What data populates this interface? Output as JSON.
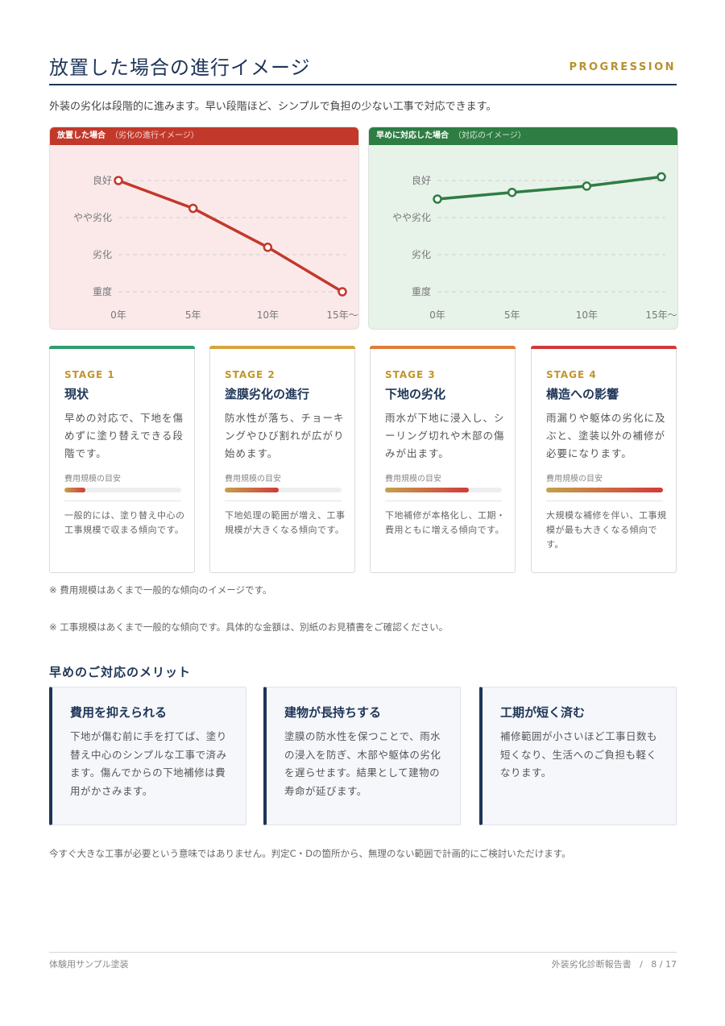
{
  "header": {
    "title": "放置した場合の進行イメージ",
    "english": "PROGRESSION",
    "intro": "外装の劣化は段階的に進みます。早い段階ほど、シンプルで負担の少ない工事で対応できます。"
  },
  "colors": {
    "navy": "#1f3557",
    "gold": "#b8902f",
    "red": "#c2392b",
    "green": "#2e7d43"
  },
  "chart_data": [
    {
      "type": "line",
      "title": "放置した場合",
      "subtitle": "（劣化の進行イメージ）",
      "categories": [
        "0年",
        "5年",
        "10年",
        "15年〜"
      ],
      "y_levels": [
        "重度",
        "劣化",
        "やや劣化",
        "良好"
      ],
      "series": [
        {
          "values": [
            3,
            2.25,
            1.2,
            0
          ]
        }
      ],
      "ylim": [
        0,
        3
      ],
      "grid": true,
      "color": "#c2392b"
    },
    {
      "type": "line",
      "title": "早めに対応した場合",
      "subtitle": "（対応のイメージ）",
      "categories": [
        "0年",
        "5年",
        "10年",
        "15年〜"
      ],
      "y_levels": [
        "重度",
        "劣化",
        "やや劣化",
        "良好"
      ],
      "series": [
        {
          "values": [
            2.5,
            2.68,
            2.85,
            3.1
          ]
        }
      ],
      "ylim": [
        0,
        3
      ],
      "grid": true,
      "color": "#2e7d43"
    }
  ],
  "stages": [
    {
      "num": "STAGE 1",
      "name": "現状",
      "desc": "早めの対応で、下地を傷めずに塗り替えできる段階です。",
      "cost_label": "費用規模の目安",
      "cost_level": 0.18,
      "note": "一般的には、塗り替え中心の工事規模で収まる傾向です。",
      "accent": "#2e9e6b"
    },
    {
      "num": "STAGE 2",
      "name": "塗膜劣化の進行",
      "desc": "防水性が落ち、チョーキングやひび割れが広がり始めます。",
      "cost_label": "費用規模の目安",
      "cost_level": 0.46,
      "note": "下地処理の範囲が増え、工事規模が大きくなる傾向です。",
      "accent": "#d9a441"
    },
    {
      "num": "STAGE 3",
      "name": "下地の劣化",
      "desc": "雨水が下地に浸入し、シーリング切れや木部の傷みが出ます。",
      "cost_label": "費用規模の目安",
      "cost_level": 0.72,
      "note": "下地補修が本格化し、工期・費用ともに増える傾向です。",
      "accent": "#e07b39"
    },
    {
      "num": "STAGE 4",
      "name": "構造への影響",
      "desc": "雨漏りや躯体の劣化に及ぶと、塗装以外の補修が必要になります。",
      "cost_label": "費用規模の目安",
      "cost_level": 1.0,
      "note": "大規模な補修を伴い、工事規模が最も大きくなる傾向です。",
      "accent": "#d03a3a"
    }
  ],
  "footnotes": [
    "※ 費用規模はあくまで一般的な傾向のイメージです。",
    "※ 工事規模はあくまで一般的な傾向です。具体的な金額は、別紙のお見積書をご確認ください。"
  ],
  "merits": {
    "title": "早めのご対応のメリット",
    "items": [
      {
        "title": "費用を抑えられる",
        "desc": "下地が傷む前に手を打てば、塗り替え中心のシンプルな工事で済みます。傷んでからの下地補修は費用がかさみます。"
      },
      {
        "title": "建物が長持ちする",
        "desc": "塗膜の防水性を保つことで、雨水の浸入を防ぎ、木部や躯体の劣化を遅らせます。結果として建物の寿命が延びます。"
      },
      {
        "title": "工期が短く済む",
        "desc": "補修範囲が小さいほど工事日数も短くなり、生活へのご負担も軽くなります。"
      }
    ]
  },
  "closing": "今すぐ大きな工事が必要という意味ではありません。判定C・Dの箇所から、無理のない範囲で計画的にご検討いただけます。",
  "footer": {
    "company": "体験用サンプル塗装",
    "doc_title": "外装劣化診断報告書",
    "page": "8 / 17"
  }
}
